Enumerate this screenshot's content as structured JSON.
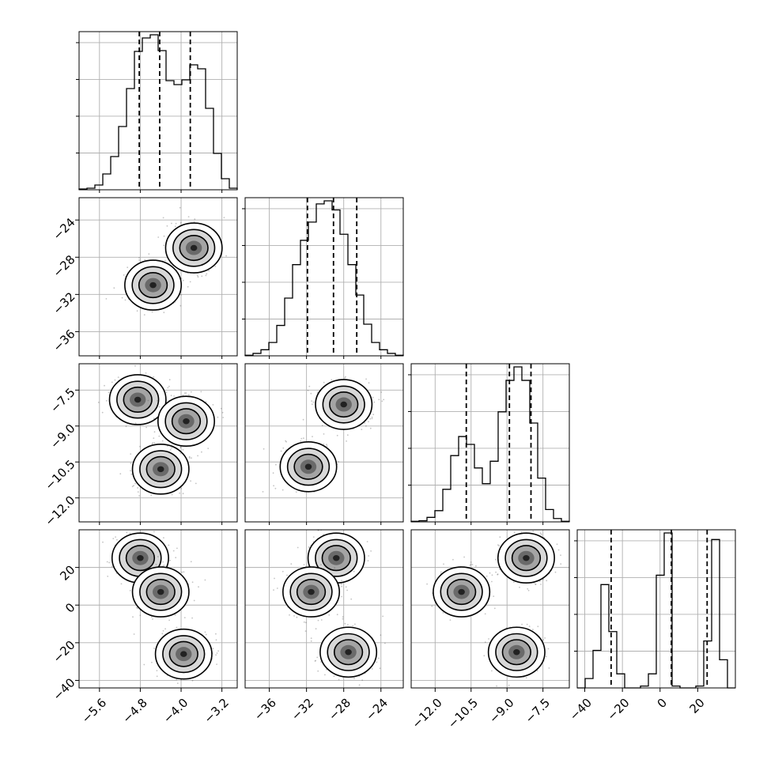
{
  "chart_data": {
    "type": "corner",
    "title": "",
    "params": [
      {
        "index": 0,
        "label": "",
        "range": [
          -6.0,
          -2.9
        ],
        "ticks": [
          "−5.6",
          "−4.8",
          "−4.0",
          "−3.2"
        ],
        "tick_values": [
          -5.6,
          -4.8,
          -4.0,
          -3.2
        ],
        "quantiles": [
          -4.82,
          -4.42,
          -3.82
        ]
      },
      {
        "index": 1,
        "label": "",
        "range": [
          -38.6,
          -21.6
        ],
        "ticks": [
          "−36",
          "−32",
          "−28",
          "−24"
        ],
        "tick_values": [
          -36,
          -32,
          -28,
          -24
        ],
        "quantiles": [
          -31.9,
          -29.1,
          -26.6
        ]
      },
      {
        "index": 2,
        "label": "",
        "range": [
          -13.0,
          -6.4
        ],
        "ticks": [
          "−12.0",
          "−10.5",
          "−9.0",
          "−7.5"
        ],
        "tick_values": [
          -12.0,
          -10.5,
          -9.0,
          -7.5
        ],
        "quantiles": [
          -10.7,
          -8.9,
          -8.0
        ]
      },
      {
        "index": 3,
        "label": "",
        "range": [
          -44,
          40
        ],
        "ticks": [
          "−40",
          "−20",
          "0",
          "20"
        ],
        "tick_values": [
          -40,
          -20,
          0,
          20
        ],
        "quantiles": [
          -26,
          6,
          25
        ]
      }
    ],
    "histograms": [
      {
        "param": 0,
        "bins": 20,
        "counts": [
          1,
          2,
          6,
          20,
          42,
          80,
          128,
          175,
          192,
          196,
          176,
          138,
          133,
          139,
          158,
          153,
          103,
          46,
          14,
          2
        ]
      },
      {
        "param": 1,
        "bins": 20,
        "counts": [
          1,
          4,
          10,
          22,
          50,
          95,
          150,
          190,
          220,
          250,
          255,
          240,
          200,
          150,
          100,
          52,
          22,
          10,
          4,
          1
        ]
      },
      {
        "param": 2,
        "bins": 20,
        "counts": [
          1,
          2,
          8,
          20,
          58,
          118,
          152,
          138,
          96,
          68,
          108,
          196,
          252,
          276,
          252,
          176,
          78,
          22,
          6,
          1
        ]
      },
      {
        "param": 3,
        "bins": 20,
        "counts": [
          0,
          10,
          40,
          110,
          60,
          15,
          0,
          0,
          2,
          15,
          120,
          165,
          2,
          0,
          0,
          2,
          50,
          158,
          30,
          0
        ]
      }
    ],
    "pairs": [
      {
        "x_param": 0,
        "y_param": 1,
        "clusters": [
          {
            "cx": -4.55,
            "cy": -31.0
          },
          {
            "cx": -3.75,
            "cy": -27.0
          }
        ]
      },
      {
        "x_param": 0,
        "y_param": 2,
        "clusters": [
          {
            "cx": -4.85,
            "cy": -7.9
          },
          {
            "cx": -4.4,
            "cy": -10.8
          },
          {
            "cx": -3.9,
            "cy": -8.8
          }
        ]
      },
      {
        "x_param": 1,
        "y_param": 2,
        "clusters": [
          {
            "cx": -28.0,
            "cy": -8.1
          },
          {
            "cx": -31.8,
            "cy": -10.7
          }
        ]
      },
      {
        "x_param": 0,
        "y_param": 3,
        "clusters": [
          {
            "cx": -4.8,
            "cy": 25
          },
          {
            "cx": -4.4,
            "cy": 7
          },
          {
            "cx": -3.95,
            "cy": -26
          }
        ]
      },
      {
        "x_param": 1,
        "y_param": 3,
        "clusters": [
          {
            "cx": -28.8,
            "cy": 25
          },
          {
            "cx": -31.5,
            "cy": 7
          },
          {
            "cx": -27.5,
            "cy": -25
          }
        ]
      },
      {
        "x_param": 2,
        "y_param": 3,
        "clusters": [
          {
            "cx": -8.2,
            "cy": 25
          },
          {
            "cx": -10.9,
            "cy": 7
          },
          {
            "cx": -8.6,
            "cy": -25
          }
        ]
      }
    ],
    "grid": true,
    "legend": "none"
  }
}
